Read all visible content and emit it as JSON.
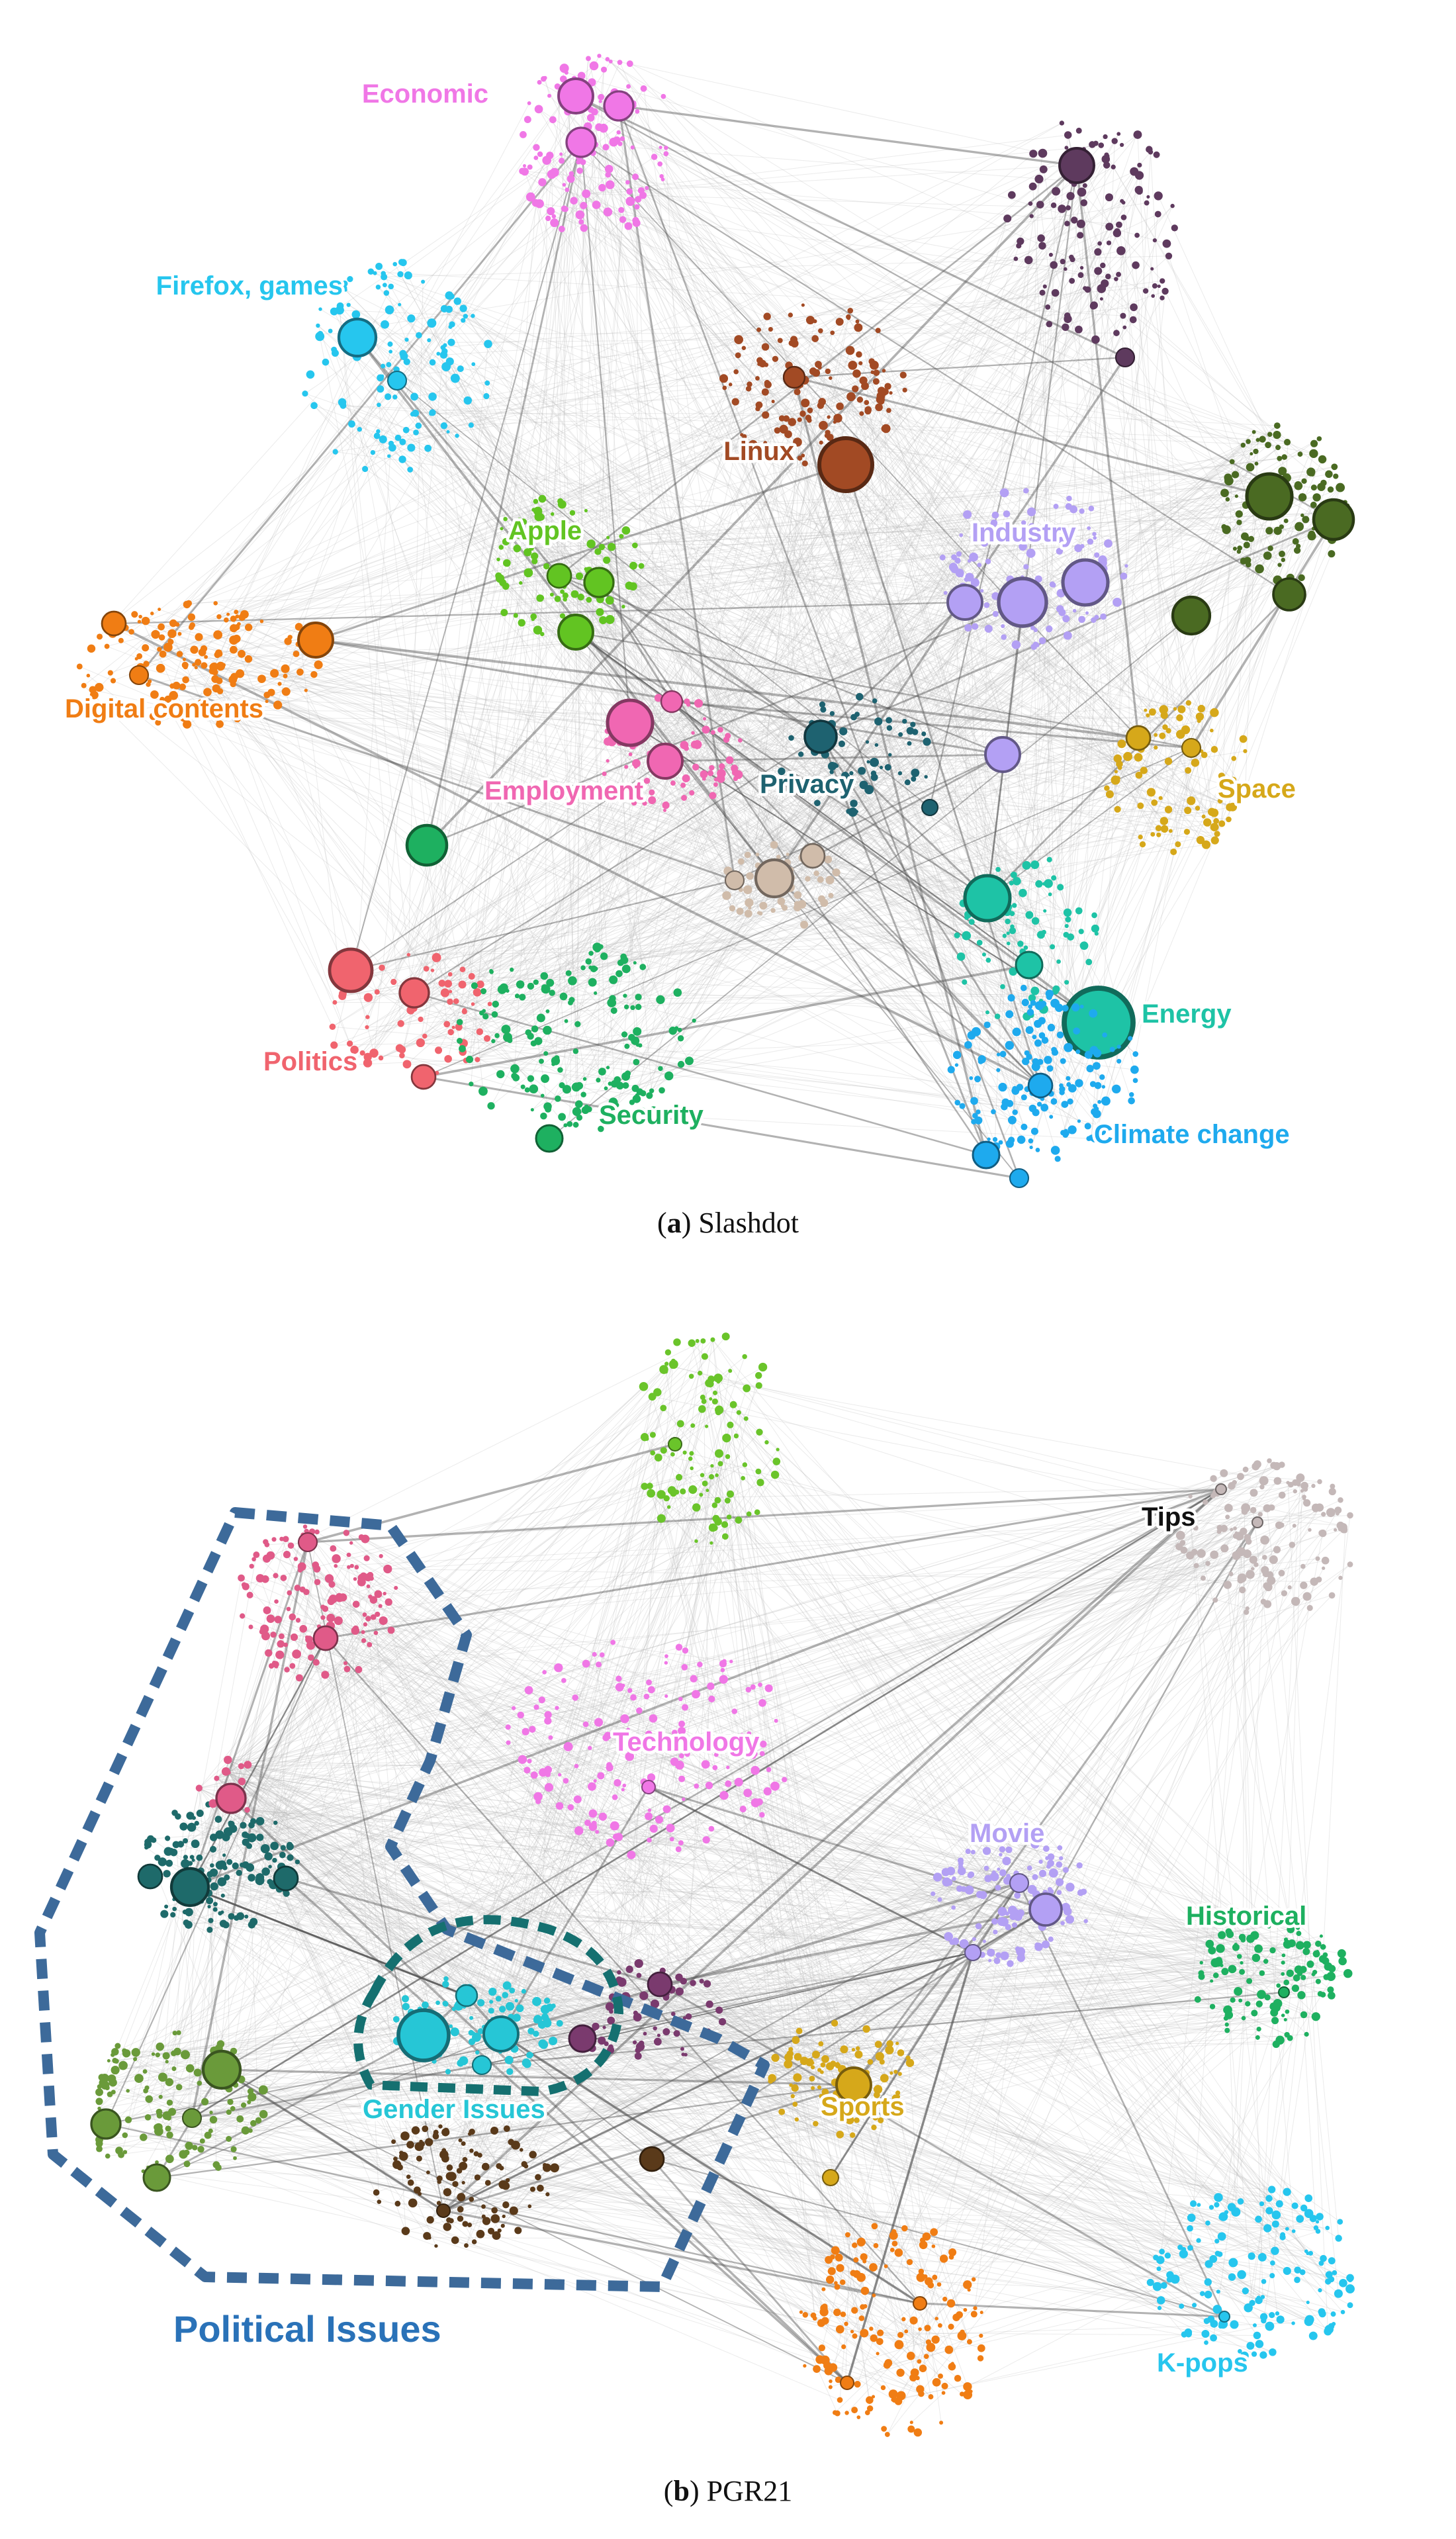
{
  "panels": [
    {
      "id": "a",
      "caption_letter": "a",
      "caption_name": "Slashdot",
      "clusters": [
        {
          "label": "Economic",
          "color": "#f077e6"
        },
        {
          "label": "Firefox, games",
          "color": "#26c6ee"
        },
        {
          "label": "Linux",
          "color": "#a24a24"
        },
        {
          "label": "Apple",
          "color": "#62c422"
        },
        {
          "label": "Industry",
          "color": "#b3a0f4"
        },
        {
          "label": "Digital contents",
          "color": "#f07d14"
        },
        {
          "label": "Employment",
          "color": "#f067b2"
        },
        {
          "label": "Privacy",
          "color": "#1e6270"
        },
        {
          "label": "Space",
          "color": "#d6a81a"
        },
        {
          "label": "Energy",
          "color": "#1ec3a6"
        },
        {
          "label": "Politics",
          "color": "#f0646e"
        },
        {
          "label": "Security",
          "color": "#1eb060"
        },
        {
          "label": "Climate change",
          "color": "#1eaaee"
        }
      ]
    },
    {
      "id": "b",
      "caption_letter": "b",
      "caption_name": "PGR21",
      "clusters": [
        {
          "label": "Tips",
          "color": "#111111"
        },
        {
          "label": "Technology",
          "color": "#f077e6"
        },
        {
          "label": "Movie",
          "color": "#b3a0f4"
        },
        {
          "label": "Historical",
          "color": "#1eb060"
        },
        {
          "label": "Gender Issues",
          "color": "#26c6d6"
        },
        {
          "label": "Sports",
          "color": "#d6a81a"
        },
        {
          "label": "Political Issues",
          "color": "#2a72b8"
        },
        {
          "label": "K-pops",
          "color": "#26c6ee"
        }
      ]
    }
  ]
}
